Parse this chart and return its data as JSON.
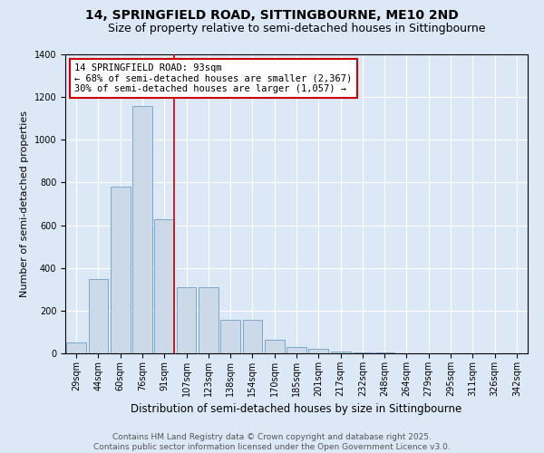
{
  "title": "14, SPRINGFIELD ROAD, SITTINGBOURNE, ME10 2ND",
  "subtitle": "Size of property relative to semi-detached houses in Sittingbourne",
  "xlabel": "Distribution of semi-detached houses by size in Sittingbourne",
  "ylabel": "Number of semi-detached properties",
  "categories": [
    "29sqm",
    "44sqm",
    "60sqm",
    "76sqm",
    "91sqm",
    "107sqm",
    "123sqm",
    "138sqm",
    "154sqm",
    "170sqm",
    "185sqm",
    "201sqm",
    "217sqm",
    "232sqm",
    "248sqm",
    "264sqm",
    "279sqm",
    "295sqm",
    "311sqm",
    "326sqm",
    "342sqm"
  ],
  "values": [
    50,
    350,
    780,
    1160,
    630,
    310,
    310,
    155,
    155,
    65,
    30,
    20,
    10,
    5,
    5,
    0,
    0,
    0,
    0,
    0,
    0
  ],
  "bar_color": "#ccd9e8",
  "bar_edge_color": "#7aaac8",
  "vline_index": 4,
  "vline_color": "#cc0000",
  "annotation_text": "14 SPRINGFIELD ROAD: 93sqm\n← 68% of semi-detached houses are smaller (2,367)\n30% of semi-detached houses are larger (1,057) →",
  "annotation_box_color": "#ffffff",
  "annotation_box_edge": "#cc0000",
  "ylim": [
    0,
    1400
  ],
  "yticks": [
    0,
    200,
    400,
    600,
    800,
    1000,
    1200,
    1400
  ],
  "background_color": "#dce8f5",
  "plot_bg_color": "#dce8f5",
  "footer_text": "Contains HM Land Registry data © Crown copyright and database right 2025.\nContains public sector information licensed under the Open Government Licence v3.0.",
  "title_fontsize": 10,
  "subtitle_fontsize": 9,
  "xlabel_fontsize": 8.5,
  "ylabel_fontsize": 8,
  "tick_fontsize": 7,
  "annotation_fontsize": 7.5,
  "footer_fontsize": 6.5
}
